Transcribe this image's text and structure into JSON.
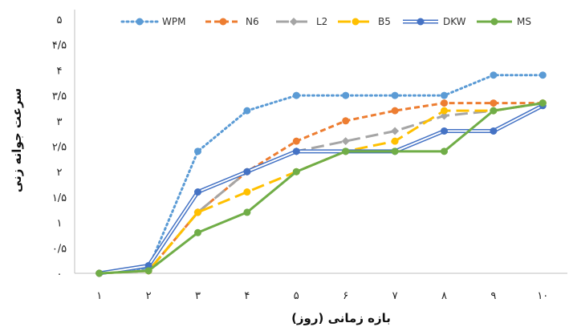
{
  "chart_data": {
    "type": "line",
    "title": "",
    "xlabel": "بازه زمانی (روز)",
    "ylabel": "سرعت جوانه زنی",
    "ylim": [
      0,
      5
    ],
    "grid": false,
    "legend_position": "top",
    "categories": [
      "۱",
      "۲",
      "۳",
      "۴",
      "۵",
      "۶",
      "۷",
      "۸",
      "۹",
      "۱۰"
    ],
    "y_ticks": [
      0,
      0.5,
      1,
      1.5,
      2,
      2.5,
      3,
      3.5,
      4,
      4.5,
      5
    ],
    "y_tick_labels": [
      "۰",
      "۰/۵",
      "۱",
      "۱/۵",
      "۲",
      "۲/۵",
      "۳",
      "۳/۵",
      "۴",
      "۴/۵",
      "۵"
    ],
    "series": [
      {
        "name": "WPM",
        "color": "#5B9BD5",
        "style": "dotted",
        "marker": "circle",
        "values": [
          0,
          0.1,
          2.4,
          3.2,
          3.5,
          3.5,
          3.5,
          3.5,
          3.9,
          3.9
        ]
      },
      {
        "name": "N6",
        "color": "#ED7D31",
        "style": "dashed",
        "marker": "circle",
        "values": [
          0,
          0.05,
          1.2,
          2.0,
          2.6,
          3.0,
          3.2,
          3.35,
          3.35,
          3.35
        ]
      },
      {
        "name": "L2",
        "color": "#A5A5A5",
        "style": "longdash",
        "marker": "diamond",
        "values": [
          0,
          0.05,
          1.2,
          2.0,
          2.4,
          2.6,
          2.8,
          3.1,
          3.2,
          3.35
        ]
      },
      {
        "name": "B5",
        "color": "#FFC000",
        "style": "longdash",
        "marker": "circle",
        "values": [
          0,
          0.05,
          1.2,
          1.6,
          2.0,
          2.4,
          2.6,
          3.2,
          3.2,
          3.35
        ]
      },
      {
        "name": "DKW",
        "color": "#4472C4",
        "style": "double",
        "marker": "circle",
        "values": [
          0,
          0.15,
          1.6,
          2.0,
          2.4,
          2.4,
          2.4,
          2.8,
          2.8,
          3.3
        ]
      },
      {
        "name": "MS",
        "color": "#70AD47",
        "style": "solid",
        "marker": "circle",
        "values": [
          0,
          0.05,
          0.8,
          1.2,
          2.0,
          2.4,
          2.4,
          2.4,
          3.2,
          3.35
        ]
      }
    ]
  }
}
